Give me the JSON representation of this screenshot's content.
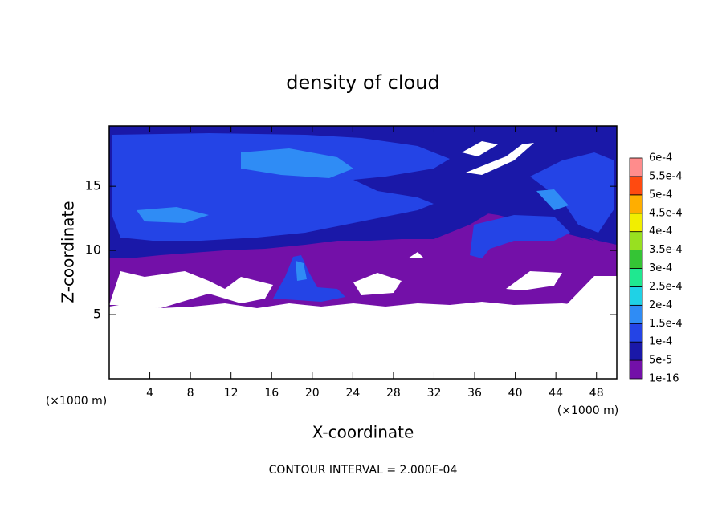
{
  "chart_data": {
    "type": "contour",
    "title": "density of cloud",
    "x_label": "X-coordinate",
    "y_label": "Z-coordinate",
    "x_unit_label": "(×1000 m)",
    "y_unit_label": "(×1000 m)",
    "footnote": "CONTOUR INTERVAL = 2.000E-04",
    "xlim": [
      0,
      50
    ],
    "xticks": [
      4,
      8,
      12,
      16,
      20,
      24,
      28,
      32,
      36,
      40,
      44,
      48
    ],
    "ylim": [
      0,
      19.7
    ],
    "yticks": [
      5,
      10,
      15
    ],
    "colorbar": {
      "levels": [
        1e-16,
        {
          "value": 5e-05,
          "label": "5e-5"
        },
        {
          "value": 0.0001,
          "label": "1e-4"
        },
        {
          "value": 0.00015,
          "label": "1.5e-4"
        },
        {
          "value": 0.0002,
          "label": "2e-4"
        },
        {
          "value": 0.00025,
          "label": "2.5e-4"
        },
        {
          "value": 0.0003,
          "label": "3e-4"
        },
        {
          "value": 0.00035,
          "label": "3.5e-4"
        },
        {
          "value": 0.0004,
          "label": "4e-4"
        },
        {
          "value": 0.00045,
          "label": "4.5e-4"
        },
        {
          "value": 0.0005,
          "label": "5e-4"
        },
        {
          "value": 0.00055,
          "label": "5.5e-4"
        },
        {
          "value": 0.0006,
          "label": "6e-4"
        }
      ],
      "colors": [
        "#7310a8",
        "#1a18a8",
        "#2444e6",
        "#2f8cf5",
        "#1fd2e6",
        "#1fe890",
        "#35c435",
        "#98e020",
        "#f2ee00",
        "#ffae00",
        "#ff4a10",
        "#ff8c8c"
      ]
    }
  }
}
